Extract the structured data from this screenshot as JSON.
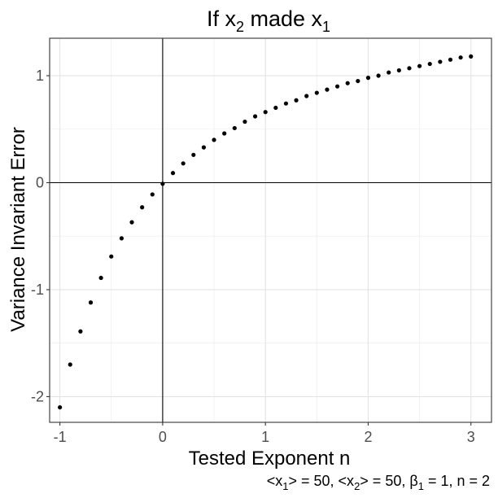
{
  "chart_data": {
    "type": "scatter",
    "title": {
      "main": "If x",
      "sub1": "2",
      "mid": " made x",
      "sub2": "1"
    },
    "xlabel": "Tested Exponent n",
    "ylabel": "Variance Invariant Error",
    "caption": {
      "part1": "<x",
      "sub1": "1",
      "part2": "> = 50, <x",
      "sub2": "2",
      "part3": "> = 50, β",
      "sub3": "1",
      "part4": " = 1, n = 2"
    },
    "xlim": [
      -1.1,
      3.2
    ],
    "ylim": [
      -2.24,
      1.35
    ],
    "xticks": [
      -1,
      0,
      1,
      2,
      3
    ],
    "xtick_labels": [
      "-1",
      "0",
      "1",
      "2",
      "3"
    ],
    "yticks": [
      -2,
      -1,
      0,
      1
    ],
    "ytick_labels": [
      "-2",
      "-1",
      "0",
      "1"
    ],
    "grid": true,
    "reference_lines": {
      "x": 0,
      "y": 0
    },
    "color": "#000000",
    "x": [
      -1.0,
      -0.9,
      -0.8,
      -0.7,
      -0.6,
      -0.5,
      -0.4,
      -0.3,
      -0.2,
      -0.1,
      0.0,
      0.1,
      0.2,
      0.3,
      0.4,
      0.5,
      0.6,
      0.7,
      0.8,
      0.9,
      1.0,
      1.1,
      1.2,
      1.3,
      1.4,
      1.5,
      1.6,
      1.7,
      1.8,
      1.9,
      2.0,
      2.1,
      2.2,
      2.3,
      2.4,
      2.5,
      2.6,
      2.7,
      2.8,
      2.9,
      3.0
    ],
    "y": [
      -2.1,
      -1.7,
      -1.39,
      -1.12,
      -0.89,
      -0.69,
      -0.52,
      -0.37,
      -0.23,
      -0.11,
      -0.01,
      0.09,
      0.18,
      0.26,
      0.33,
      0.4,
      0.46,
      0.51,
      0.57,
      0.62,
      0.66,
      0.7,
      0.74,
      0.77,
      0.81,
      0.84,
      0.87,
      0.9,
      0.93,
      0.95,
      0.98,
      1.0,
      1.03,
      1.05,
      1.07,
      1.09,
      1.11,
      1.13,
      1.15,
      1.17,
      1.18
    ]
  }
}
